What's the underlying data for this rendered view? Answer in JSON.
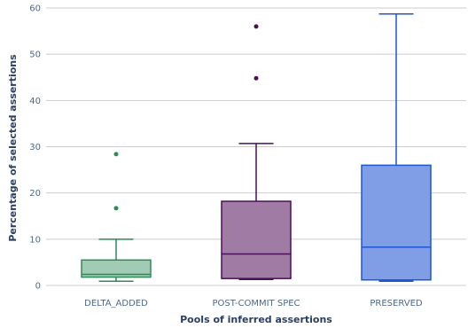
{
  "chart_data": {
    "type": "box",
    "xlabel": "Pools of inferred assertions",
    "ylabel": "Percentage of selected assertions",
    "ylim": [
      0,
      60
    ],
    "yticks": [
      0,
      10,
      20,
      30,
      40,
      50,
      60
    ],
    "grid": true,
    "legend": "none",
    "series": [
      {
        "category": "DELTA_ADDED",
        "color": "#2e8b57",
        "fill": "#a2cbb5",
        "min": 0.9,
        "q1": 1.8,
        "median": 2.4,
        "q3": 5.5,
        "max": 10.0,
        "outliers": [
          16.7,
          28.4
        ]
      },
      {
        "category": "POST-COMMIT SPEC",
        "color": "#4a0f58",
        "fill": "#a07ca5",
        "min": 1.3,
        "q1": 1.5,
        "median": 6.8,
        "q3": 18.2,
        "max": 30.7,
        "outliers": [
          44.8,
          56.0
        ]
      },
      {
        "category": "PRESERVED",
        "color": "#1f56d4",
        "fill": "#7f9ee6",
        "min": 0.9,
        "q1": 1.2,
        "median": 8.3,
        "q3": 26.0,
        "max": 58.7,
        "outliers": []
      }
    ]
  }
}
